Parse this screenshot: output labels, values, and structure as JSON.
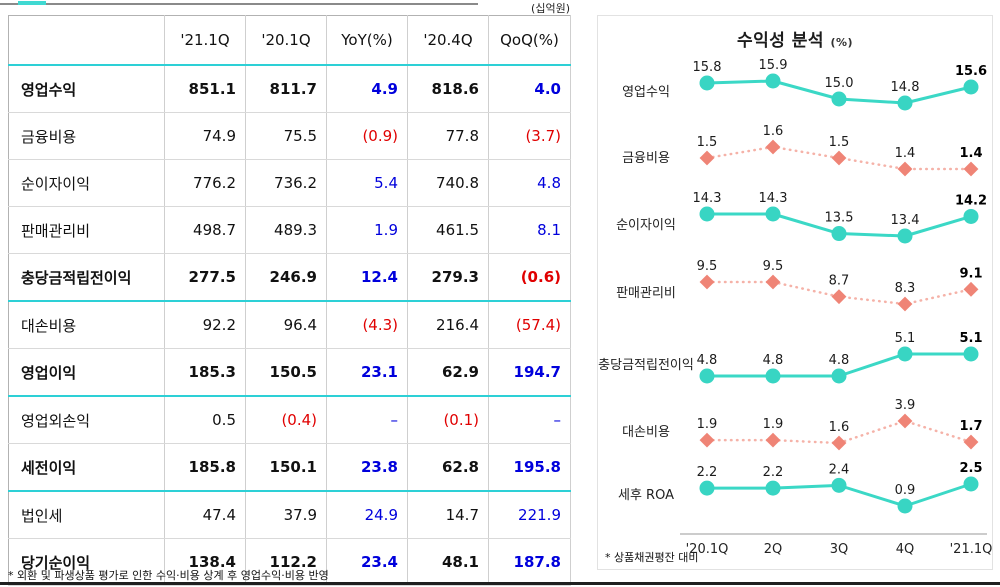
{
  "page": {
    "unit_label": "(십억원)",
    "table_footnote": "* 외환 및 파생상품 평가로 인한 수익·비용 상계 후 영업수익·비용 반영"
  },
  "table": {
    "bold_rows": [
      0,
      4,
      6,
      8,
      10
    ],
    "teal_separator_rows": [
      4,
      6,
      8
    ]
  },
  "chart": {
    "title": "수익성 분석",
    "title_unit": "(%)",
    "footnote": "* 상품채권평잔 대비"
  },
  "colors": {
    "teal_line": "#3bd8c6",
    "teal_marker": "#38d5c3",
    "salmon_marker": "#ef8476",
    "salmon_line": "#f5b2a8",
    "table_teal_rule": "#2dd0d6",
    "positive_blue": "#0000dc",
    "negative_red": "#e00000"
  },
  "chart_data": [
    {
      "type": "table",
      "unit": "(십억원)",
      "columns": [
        "",
        "'21.1Q",
        "'20.1Q",
        "YoY(%)",
        "'20.4Q",
        "QoQ(%)"
      ],
      "rows": [
        [
          "영업수익",
          "851.1",
          "811.7",
          "4.9",
          "818.6",
          "4.0"
        ],
        [
          "금융비용",
          "74.9",
          "75.5",
          "(0.9)",
          "77.8",
          "(3.7)"
        ],
        [
          "순이자이익",
          "776.2",
          "736.2",
          "5.4",
          "740.8",
          "4.8"
        ],
        [
          "판매관리비",
          "498.7",
          "489.3",
          "1.9",
          "461.5",
          "8.1"
        ],
        [
          "충당금적립전이익",
          "277.5",
          "246.9",
          "12.4",
          "279.3",
          "(0.6)"
        ],
        [
          "대손비용",
          "92.2",
          "96.4",
          "(4.3)",
          "216.4",
          "(57.4)"
        ],
        [
          "영업이익",
          "185.3",
          "150.5",
          "23.1",
          "62.9",
          "194.7"
        ],
        [
          "영업외손익",
          "0.5",
          "(0.4)",
          "–",
          "(0.1)",
          "–"
        ],
        [
          "세전이익",
          "185.8",
          "150.1",
          "23.8",
          "62.8",
          "195.8"
        ],
        [
          "법인세",
          "47.4",
          "37.9",
          "24.9",
          "14.7",
          "221.9"
        ],
        [
          "당기순이익",
          "138.4",
          "112.2",
          "23.4",
          "48.1",
          "187.8"
        ]
      ],
      "footnote": "* 외환 및 파생상품 평가로 인한 수익·비용 상계 후 영업수익·비용 반영"
    },
    {
      "type": "line",
      "title": "수익성 분석",
      "unit": "(%)",
      "categories": [
        "'20.1Q",
        "2Q",
        "3Q",
        "4Q",
        "'21.1Q"
      ],
      "series": [
        {
          "name": "영업수익",
          "line": "solid-teal",
          "values": [
            15.8,
            15.9,
            15.0,
            14.8,
            15.6
          ]
        },
        {
          "name": "금융비용",
          "line": "dotted-salmon",
          "values": [
            1.5,
            1.6,
            1.5,
            1.4,
            1.4
          ]
        },
        {
          "name": "순이자이익",
          "line": "solid-teal",
          "values": [
            14.3,
            14.3,
            13.5,
            13.4,
            14.2
          ]
        },
        {
          "name": "판매관리비",
          "line": "dotted-salmon",
          "values": [
            9.5,
            9.5,
            8.7,
            8.3,
            9.1
          ]
        },
        {
          "name": "충당금적립전이익",
          "line": "solid-teal",
          "values": [
            4.8,
            4.8,
            4.8,
            5.1,
            5.1
          ]
        },
        {
          "name": "대손비용",
          "line": "dotted-salmon",
          "values": [
            1.9,
            1.9,
            1.6,
            3.9,
            1.7
          ]
        },
        {
          "name": "세후 ROA",
          "line": "solid-teal",
          "values": [
            2.2,
            2.2,
            2.4,
            0.9,
            2.5
          ]
        }
      ],
      "legend": "none",
      "grid": false,
      "value_labels": "above-points, last point bold",
      "footnote": "* 상품채권평잔 대비"
    }
  ]
}
